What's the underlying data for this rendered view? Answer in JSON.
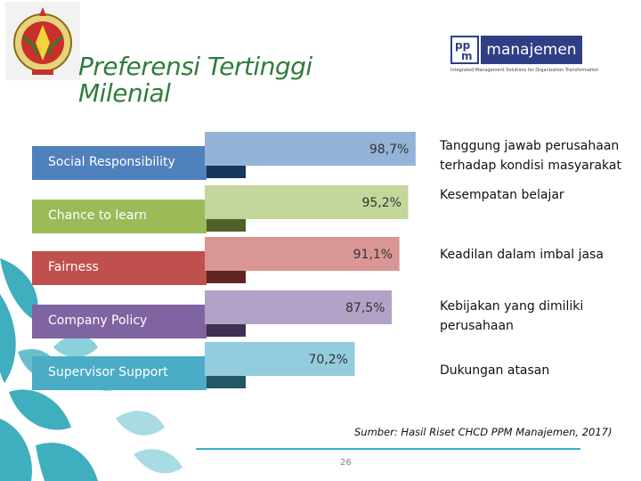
{
  "slide": {
    "title_line1": "Preferensi Tertinggi",
    "title_line2": "Milenial",
    "ppm_logo": {
      "box_top": "pp",
      "box_bottom": "m",
      "word": "manajemen",
      "tagline": "Integrated Management Solutions for Organization Transformation"
    },
    "source": "Sumber: Hasil Riset CHCD PPM Manajemen, 2017)",
    "page_number": "26"
  },
  "chart_data": {
    "type": "bar",
    "categories": [
      "Social Responsibility",
      "Chance to learn",
      "Fairness",
      "Company Policy",
      "Supervisor Support"
    ],
    "values": [
      98.7,
      95.2,
      91.1,
      87.5,
      70.2
    ],
    "value_labels": [
      "98,7%",
      "95,2%",
      "91,1%",
      "87,5%",
      "70,2%"
    ],
    "descriptions": [
      "Tanggung jawab perusahaan terhadap kondisi masyarakat",
      "Kesempatan belajar",
      "Keadilan dalam imbal jasa",
      "Kebijakan yang dimiliki perusahaan",
      "Dukungan atasan"
    ],
    "colors": [
      "#4f81bd",
      "#9bbb59",
      "#c0504d",
      "#8064a2",
      "#4bacc6"
    ],
    "light_colors": [
      "#95b3d7",
      "#c3d69b",
      "#d99694",
      "#b3a2c7",
      "#93cddd"
    ],
    "dark_colors": [
      "#17375e",
      "#4f6228",
      "#632523",
      "#3f3151",
      "#215968"
    ],
    "xlim": [
      0,
      100
    ]
  }
}
